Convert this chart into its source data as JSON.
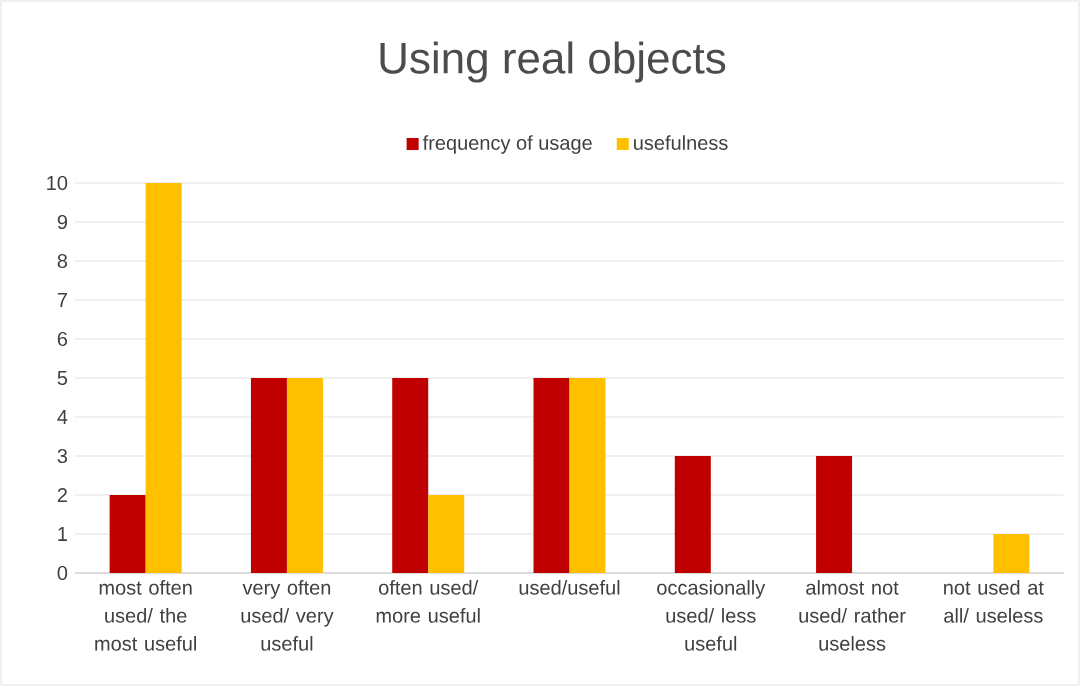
{
  "chart_data": {
    "type": "bar",
    "title": "Using real objects",
    "categories": [
      "most often used/ the most useful",
      "very often used/ very useful",
      "often used/ more useful",
      "used/useful",
      "occasionally used/ less useful",
      "almost not used/ rather useless",
      "not used at all/ useless"
    ],
    "series": [
      {
        "name": "frequency of usage",
        "color": "#c00000",
        "values": [
          2,
          5,
          5,
          5,
          3,
          3,
          0
        ]
      },
      {
        "name": "usefulness",
        "color": "#ffc000",
        "values": [
          10,
          5,
          2,
          5,
          0,
          0,
          1
        ]
      }
    ],
    "ylim": [
      0,
      10
    ],
    "yticks": [
      0,
      1,
      2,
      3,
      4,
      5,
      6,
      7,
      8,
      9,
      10
    ],
    "grid": "y",
    "legend": "top"
  }
}
